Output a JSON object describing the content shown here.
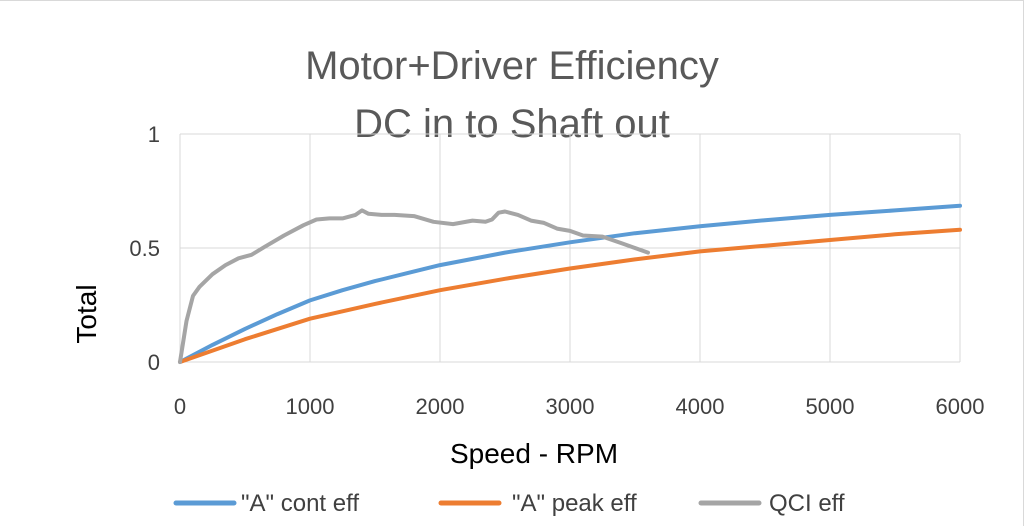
{
  "chart_data": {
    "type": "line",
    "title": [
      "Motor+Driver Efficiency",
      "DC in to Shaft out"
    ],
    "xlabel": "Speed - RPM",
    "ylabel": "Total",
    "xlim": [
      0,
      6000
    ],
    "ylim": [
      0,
      1
    ],
    "xticks": [
      0,
      1000,
      2000,
      3000,
      4000,
      5000,
      6000
    ],
    "yticks": [
      0,
      0.5,
      1
    ],
    "ytick_labels": [
      "0",
      "0.5",
      "1"
    ],
    "grid": true,
    "legend_position": "bottom",
    "series": [
      {
        "name": "\"A\" cont eff",
        "color": "#5b9bd5",
        "x": [
          0,
          250,
          500,
          750,
          1000,
          1250,
          1500,
          1750,
          2000,
          2500,
          3000,
          3500,
          4000,
          4500,
          5000,
          5500,
          6000
        ],
        "y": [
          0,
          0.075,
          0.145,
          0.21,
          0.27,
          0.315,
          0.355,
          0.39,
          0.425,
          0.48,
          0.525,
          0.565,
          0.595,
          0.622,
          0.645,
          0.665,
          0.685
        ]
      },
      {
        "name": "\"A\" peak eff",
        "color": "#ed7d31",
        "x": [
          0,
          500,
          1000,
          1500,
          2000,
          2500,
          3000,
          3500,
          4000,
          4500,
          5000,
          5500,
          6000
        ],
        "y": [
          0,
          0.1,
          0.19,
          0.255,
          0.315,
          0.365,
          0.41,
          0.45,
          0.485,
          0.51,
          0.535,
          0.56,
          0.58
        ]
      },
      {
        "name": "QCI eff",
        "color": "#a5a5a5",
        "x": [
          0,
          50,
          100,
          150,
          250,
          350,
          450,
          550,
          650,
          800,
          950,
          1050,
          1150,
          1250,
          1350,
          1400,
          1450,
          1550,
          1650,
          1800,
          1950,
          2100,
          2250,
          2350,
          2400,
          2450,
          2500,
          2600,
          2700,
          2800,
          2900,
          3000,
          3100,
          3250,
          3400,
          3600
        ],
        "y": [
          0,
          0.18,
          0.29,
          0.33,
          0.385,
          0.425,
          0.455,
          0.47,
          0.505,
          0.555,
          0.6,
          0.625,
          0.63,
          0.63,
          0.645,
          0.665,
          0.65,
          0.645,
          0.645,
          0.64,
          0.615,
          0.605,
          0.62,
          0.615,
          0.625,
          0.655,
          0.66,
          0.645,
          0.62,
          0.61,
          0.585,
          0.575,
          0.555,
          0.55,
          0.52,
          0.48
        ]
      }
    ]
  }
}
